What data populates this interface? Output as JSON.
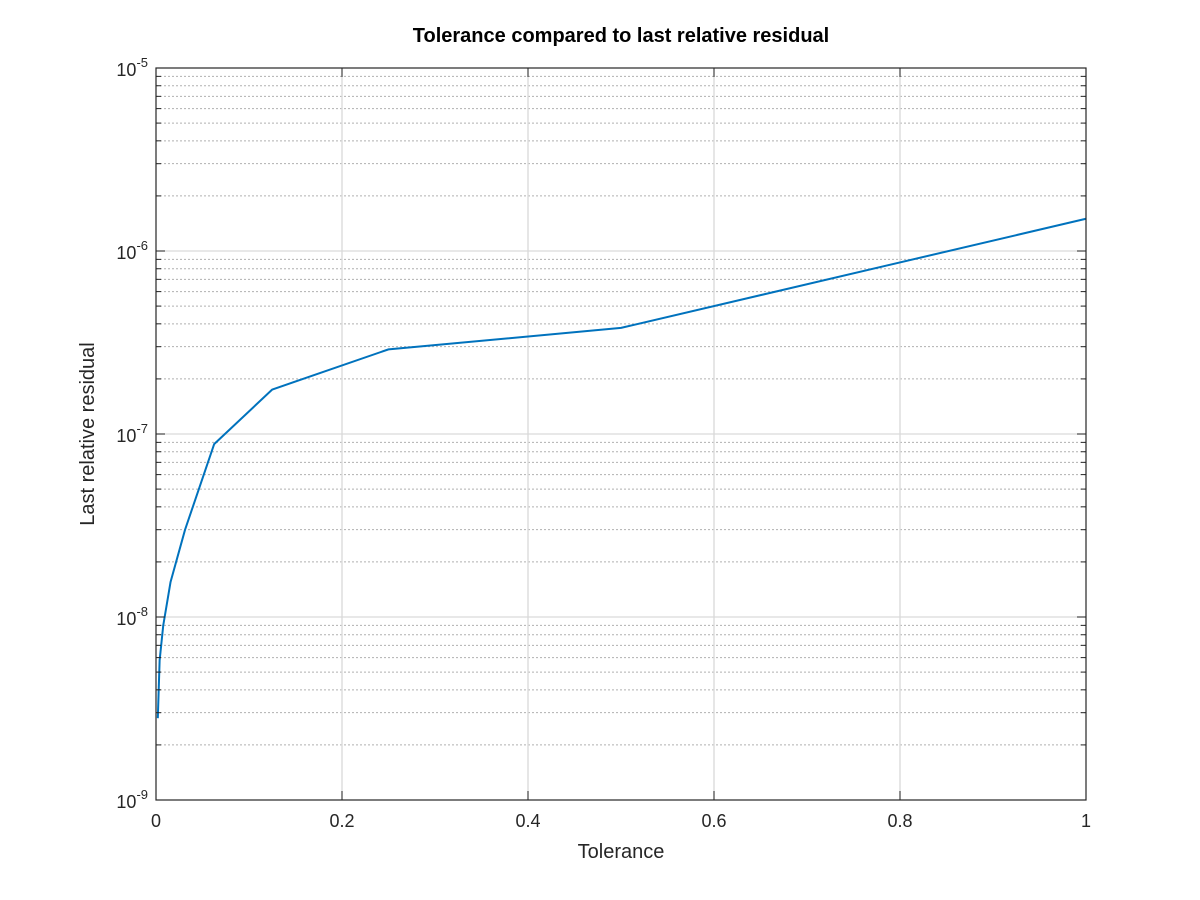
{
  "chart_data": {
    "type": "line",
    "title": "Tolerance compared to last relative residual",
    "xlabel": "Tolerance",
    "ylabel": "Last relative residual",
    "xlim": [
      0,
      1
    ],
    "ylim": [
      1e-09,
      1e-05
    ],
    "yscale": "log",
    "grid": true,
    "minor_grid_y": true,
    "x_ticks": [
      0,
      0.2,
      0.4,
      0.6,
      0.8,
      1
    ],
    "x_tick_labels": [
      "0",
      "0.2",
      "0.4",
      "0.6",
      "0.8",
      "1"
    ],
    "y_ticks": [
      {
        "value": 1e-09,
        "base": "10",
        "exponent": "-9"
      },
      {
        "value": 1e-08,
        "base": "10",
        "exponent": "-8"
      },
      {
        "value": 1e-07,
        "base": "10",
        "exponent": "-7"
      },
      {
        "value": 1e-06,
        "base": "10",
        "exponent": "-6"
      },
      {
        "value": 1e-05,
        "base": "10",
        "exponent": "-5"
      }
    ],
    "series": [
      {
        "color": "#0072bd",
        "x": [
          0.00195,
          0.0039,
          0.0078,
          0.0156,
          0.03125,
          0.0625,
          0.125,
          0.25,
          0.5,
          1
        ],
        "y": [
          2.8e-09,
          5.8e-09,
          9e-09,
          1.55e-08,
          3e-08,
          8.8e-08,
          1.75e-07,
          2.9e-07,
          3.8e-07,
          1.5e-06
        ]
      }
    ]
  }
}
